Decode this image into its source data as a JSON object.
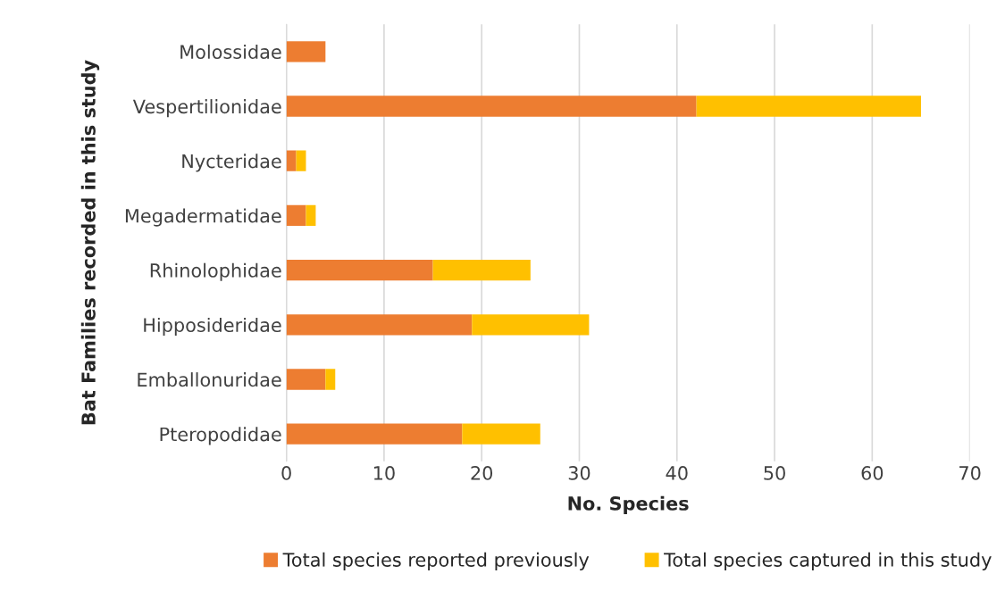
{
  "chart_data": {
    "type": "bar",
    "orientation": "horizontal",
    "stacked": true,
    "xlabel": "No. Species",
    "ylabel": "Bat Families recorded in this study",
    "categories": [
      "Molossidae",
      "Vespertilionidae",
      "Nycteridae",
      "Megadermatidae",
      "Rhinolophidae",
      "Hipposideridae",
      "Emballonuridae",
      "Pteropodidae"
    ],
    "series": [
      {
        "name": "Total species reported previously",
        "color": "#ed7d31",
        "values": [
          4,
          42,
          1,
          2,
          15,
          19,
          4,
          18
        ]
      },
      {
        "name": "Total species captured in this study",
        "color": "#ffc000",
        "values": [
          null,
          23,
          1,
          1,
          10,
          12,
          1,
          8
        ]
      }
    ],
    "xlim": [
      0,
      70
    ],
    "xticks": [
      0,
      10,
      20,
      30,
      40,
      50,
      60,
      70
    ],
    "grid": "x",
    "legend": "bottom"
  }
}
